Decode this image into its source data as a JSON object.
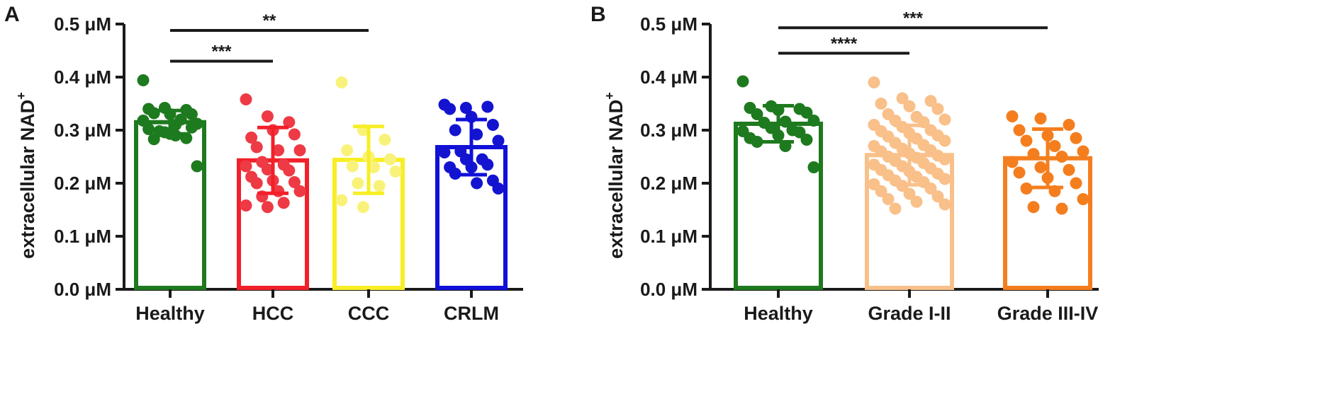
{
  "chart_data": [
    {
      "type": "bar",
      "panel": "A",
      "ylabel": "extracellular NAD",
      "ylabel_superscript": "+",
      "ylim": [
        0,
        0.5
      ],
      "yticks": [
        {
          "value": 0.0,
          "label": "0.0 μM"
        },
        {
          "value": 0.1,
          "label": "0.1 μM"
        },
        {
          "value": 0.2,
          "label": "0.2 μM"
        },
        {
          "value": 0.3,
          "label": "0.3 μM"
        },
        {
          "value": 0.4,
          "label": "0.4 μM"
        },
        {
          "value": 0.5,
          "label": "0.5 μM"
        }
      ],
      "categories": [
        "Healthy",
        "HCC",
        "CCC",
        "CRLM"
      ],
      "colors": [
        "#1e7a1e",
        "#f2202a",
        "#f7ef24",
        "#1010d8"
      ],
      "point_colors": [
        "#1e7a1e",
        "#ee3a44",
        "#f9f27a",
        "#1414d0"
      ],
      "values": [
        0.315,
        0.243,
        0.244,
        0.268
      ],
      "sd": [
        0.022,
        0.062,
        0.063,
        0.052
      ],
      "points": [
        [
          0.394,
          0.342,
          0.338,
          0.34,
          0.33,
          0.33,
          0.332,
          0.31,
          0.312,
          0.298,
          0.32,
          0.318,
          0.296,
          0.285,
          0.302,
          0.293,
          0.305,
          0.283,
          0.29,
          0.232
        ],
        [
          0.358,
          0.326,
          0.315,
          0.286,
          0.3,
          0.292,
          0.268,
          0.262,
          0.262,
          0.24,
          0.235,
          0.232,
          0.226,
          0.224,
          0.212,
          0.205,
          0.202,
          0.2,
          0.185,
          0.185,
          0.175,
          0.163,
          0.158,
          0.155
        ],
        [
          0.39,
          0.3,
          0.282,
          0.262,
          0.25,
          0.245,
          0.232,
          0.23,
          0.222,
          0.2,
          0.195,
          0.168,
          0.155
        ],
        [
          0.348,
          0.342,
          0.344,
          0.34,
          0.325,
          0.31,
          0.3,
          0.292,
          0.28,
          0.26,
          0.245,
          0.258,
          0.245,
          0.235,
          0.23,
          0.23,
          0.205,
          0.218,
          0.2,
          0.19
        ]
      ],
      "significance": [
        {
          "from": 0,
          "to": 1,
          "label": "***",
          "y": 0.43
        },
        {
          "from": 0,
          "to": 2,
          "label": "**",
          "y": 0.488
        }
      ]
    },
    {
      "type": "bar",
      "panel": "B",
      "ylabel": "extracellular NAD",
      "ylabel_superscript": "+",
      "ylim": [
        0,
        0.5
      ],
      "yticks": [
        {
          "value": 0.0,
          "label": "0.0 μM"
        },
        {
          "value": 0.1,
          "label": "0.1 μM"
        },
        {
          "value": 0.2,
          "label": "0.2 μM"
        },
        {
          "value": 0.3,
          "label": "0.3 μM"
        },
        {
          "value": 0.4,
          "label": "0.4 μM"
        },
        {
          "value": 0.5,
          "label": "0.5 μM"
        }
      ],
      "categories": [
        "Healthy",
        "Grade I-II",
        "Grade III-IV"
      ],
      "colors": [
        "#1e7a1e",
        "#f9c08a",
        "#f47e1e"
      ],
      "point_colors": [
        "#1e7a1e",
        "#f9c08a",
        "#f47e1e"
      ],
      "values": [
        0.312,
        0.253,
        0.247
      ],
      "sd": [
        0.034,
        0.056,
        0.055
      ],
      "points": [
        [
          0.392,
          0.345,
          0.34,
          0.342,
          0.338,
          0.333,
          0.33,
          0.316,
          0.318,
          0.314,
          0.3,
          0.298,
          0.304,
          0.296,
          0.285,
          0.29,
          0.282,
          0.278,
          0.27,
          0.23
        ],
        [
          0.39,
          0.36,
          0.355,
          0.35,
          0.345,
          0.34,
          0.33,
          0.325,
          0.32,
          0.318,
          0.315,
          0.31,
          0.306,
          0.3,
          0.298,
          0.294,
          0.29,
          0.288,
          0.284,
          0.28,
          0.276,
          0.272,
          0.27,
          0.265,
          0.262,
          0.26,
          0.256,
          0.252,
          0.25,
          0.248,
          0.245,
          0.242,
          0.238,
          0.235,
          0.232,
          0.228,
          0.225,
          0.222,
          0.218,
          0.215,
          0.212,
          0.208,
          0.205,
          0.202,
          0.198,
          0.195,
          0.19,
          0.185,
          0.18,
          0.175,
          0.17,
          0.165,
          0.16,
          0.152
        ],
        [
          0.326,
          0.322,
          0.31,
          0.3,
          0.29,
          0.285,
          0.28,
          0.27,
          0.26,
          0.255,
          0.25,
          0.24,
          0.23,
          0.225,
          0.22,
          0.21,
          0.2,
          0.19,
          0.185,
          0.17,
          0.155,
          0.152
        ]
      ],
      "significance": [
        {
          "from": 0,
          "to": 1,
          "label": "****",
          "y": 0.445
        },
        {
          "from": 0,
          "to": 2,
          "label": "***",
          "y": 0.493
        }
      ]
    }
  ]
}
